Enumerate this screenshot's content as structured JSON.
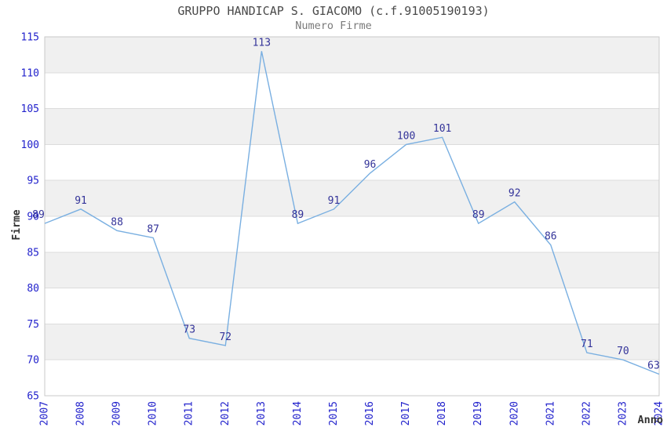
{
  "chart_data": {
    "type": "line",
    "title": "GRUPPO HANDICAP S. GIACOMO (c.f.91005190193)",
    "subtitle": "Numero Firme",
    "xlabel": "Anno",
    "ylabel": "Firme",
    "x": [
      2007,
      2008,
      2009,
      2010,
      2011,
      2012,
      2013,
      2014,
      2015,
      2016,
      2017,
      2018,
      2019,
      2020,
      2021,
      2022,
      2023,
      2024
    ],
    "values": [
      89,
      91,
      88,
      87,
      73,
      72,
      113,
      89,
      91,
      96,
      100,
      101,
      89,
      92,
      86,
      71,
      70,
      63
    ],
    "plotted_values": [
      89,
      91,
      88,
      87,
      73,
      72,
      113,
      89,
      91,
      96,
      100,
      101,
      89,
      92,
      86,
      71,
      70,
      68
    ],
    "ylim": [
      65,
      115
    ],
    "ytick_step": 5,
    "yticks": [
      65,
      70,
      75,
      80,
      85,
      90,
      95,
      100,
      105,
      110,
      115
    ],
    "grid": "horizontal-bands-alternating",
    "legend": "none",
    "colors": {
      "line": "#79afe1",
      "point_label": "#333399",
      "tick_label": "#2222cc",
      "title": "#4a4a4a",
      "subtitle": "#7a7a7a",
      "axis_title": "#333333",
      "band": "#f0f0f0",
      "gridline": "#dcdcdc",
      "border": "#c9c9c9",
      "background": "#ffffff"
    }
  }
}
